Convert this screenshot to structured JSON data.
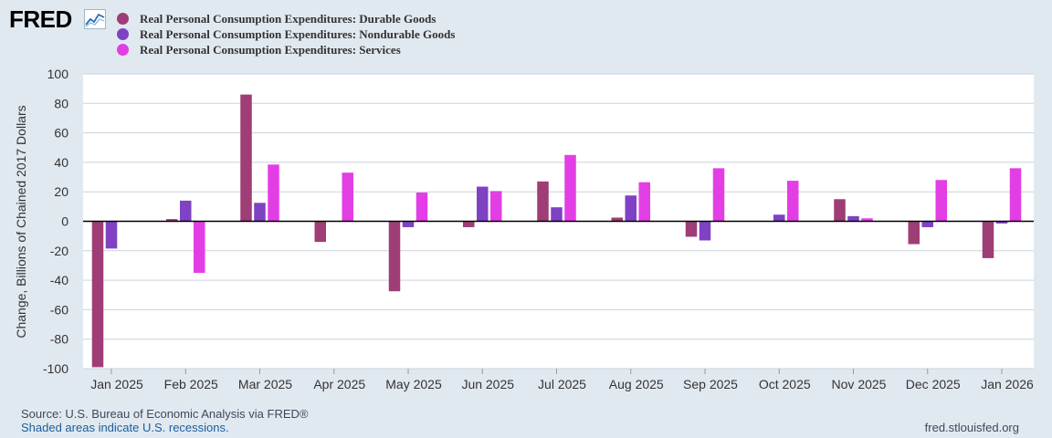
{
  "logo": {
    "text": "FRED"
  },
  "legend": [
    {
      "label": "Real Personal Consumption Expenditures: Durable Goods",
      "color": "#9e3d76"
    },
    {
      "label": "Real Personal Consumption Expenditures: Nondurable Goods",
      "color": "#7e42c3"
    },
    {
      "label": "Real Personal Consumption Expenditures: Services",
      "color": "#e33ee5"
    }
  ],
  "chart_data": {
    "type": "bar",
    "title": "",
    "xlabel": "",
    "ylabel": "Change, Billions of Chained 2017 Dollars",
    "ylim": [
      -100,
      100
    ],
    "yticks": [
      100,
      80,
      60,
      40,
      20,
      0,
      -20,
      -40,
      -60,
      -80,
      -100
    ],
    "grid": true,
    "legend_position": "top-left",
    "categories": [
      "Jan 2025",
      "Feb 2025",
      "Mar 2025",
      "Apr 2025",
      "May 2025",
      "Jun 2025",
      "Jul 2025",
      "Aug 2025",
      "Sep 2025",
      "Oct 2025",
      "Nov 2025",
      "Dec 2025",
      "Jan 2026"
    ],
    "series": [
      {
        "name": "Real Personal Consumption Expenditures: Durable Goods",
        "color": "#9e3d76",
        "values": [
          -99,
          1.5,
          86,
          -14,
          -47.5,
          -4,
          27,
          2.5,
          -10.5,
          0,
          15,
          -15.5,
          -25
        ]
      },
      {
        "name": "Real Personal Consumption Expenditures: Nondurable Goods",
        "color": "#7e42c3",
        "values": [
          -18.5,
          14,
          12.5,
          0,
          -4,
          23.5,
          9.5,
          17.5,
          -13,
          4.5,
          3.5,
          -4,
          -1.5
        ]
      },
      {
        "name": "Real Personal Consumption Expenditures: Services",
        "color": "#e33ee5",
        "values": [
          0,
          -35,
          38.5,
          33,
          19.5,
          20.5,
          45,
          26.5,
          36,
          27.5,
          2,
          28,
          36
        ]
      }
    ]
  },
  "footer": {
    "source": "Source: U.S. Bureau of Economic Analysis via FRED®",
    "note": "Shaded areas indicate U.S. recessions.",
    "url": "fred.stlouisfed.org"
  }
}
